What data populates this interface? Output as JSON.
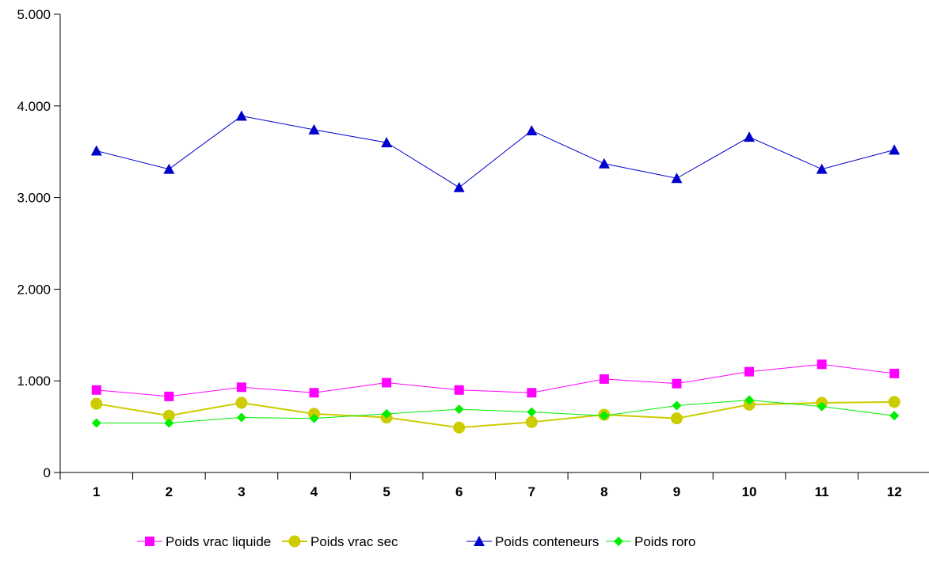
{
  "chart_data": {
    "type": "line",
    "categories": [
      "1",
      "2",
      "3",
      "4",
      "5",
      "6",
      "7",
      "8",
      "9",
      "10",
      "11",
      "12"
    ],
    "ylim": [
      0,
      5000
    ],
    "y_ticks": [
      0,
      1000,
      2000,
      3000,
      4000,
      5000
    ],
    "y_tick_labels": [
      "0",
      "1.000",
      "2.000",
      "3.000",
      "4.000",
      "5.000"
    ],
    "grid": false,
    "legend_position": "bottom",
    "series": [
      {
        "name": "Poids vrac liquide",
        "color": "#ff00ff",
        "marker": "square",
        "values": [
          900,
          830,
          930,
          870,
          980,
          900,
          870,
          1020,
          970,
          1100,
          1180,
          1080
        ]
      },
      {
        "name": "Poids vrac sec",
        "color": "#cccc00",
        "marker": "circle",
        "values": [
          750,
          620,
          760,
          640,
          600,
          490,
          550,
          630,
          590,
          740,
          760,
          770
        ]
      },
      {
        "name": "Poids conteneurs",
        "color": "#0000cc",
        "marker": "triangle",
        "values": [
          3510,
          3310,
          3890,
          3740,
          3600,
          3110,
          3730,
          3370,
          3210,
          3660,
          3310,
          3520
        ]
      },
      {
        "name": "Poids roro",
        "color": "#00ee00",
        "marker": "diamond",
        "values": [
          540,
          540,
          600,
          590,
          640,
          690,
          660,
          620,
          730,
          790,
          720,
          620
        ]
      }
    ]
  }
}
